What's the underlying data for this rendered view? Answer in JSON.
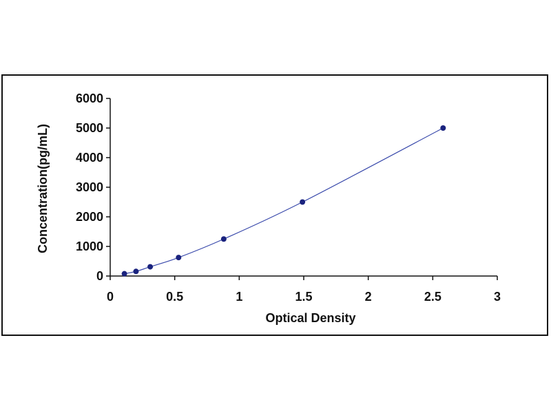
{
  "chart_data": {
    "type": "scatter",
    "title": "",
    "xlabel": "Optical Density",
    "ylabel": "Concentration(pg/mL)",
    "xlim": [
      0,
      3
    ],
    "ylim": [
      0,
      6000
    ],
    "x_ticks": [
      "0",
      "0.5",
      "1",
      "1.5",
      "2",
      "2.5",
      "3"
    ],
    "y_ticks": [
      "0",
      "1000",
      "2000",
      "3000",
      "4000",
      "5000",
      "6000"
    ],
    "grid": false,
    "legend": "none",
    "trendline": "smooth curve through points",
    "series": [
      {
        "points": [
          {
            "x": 0.11,
            "y": 78
          },
          {
            "x": 0.2,
            "y": 156
          },
          {
            "x": 0.31,
            "y": 312
          },
          {
            "x": 0.53,
            "y": 625
          },
          {
            "x": 0.88,
            "y": 1250
          },
          {
            "x": 1.49,
            "y": 2500
          },
          {
            "x": 2.58,
            "y": 5000
          }
        ]
      }
    ],
    "colors": {
      "marker": "#1a237e",
      "line": "#3949ab",
      "axis": "#111111"
    }
  }
}
